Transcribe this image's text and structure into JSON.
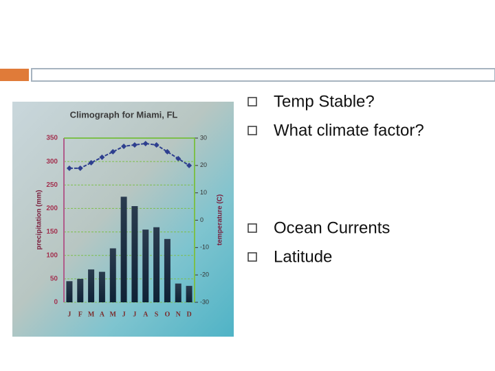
{
  "bullets": [
    "Temp Stable?",
    "What climate factor?",
    "Ocean Currents",
    "Latitude"
  ],
  "chart_data": {
    "type": "bar",
    "title": "Climograph for Miami, FL",
    "y_label": "precipitation (mm)",
    "y2_label": "temperature (C)",
    "categories": [
      "J",
      "F",
      "M",
      "A",
      "M",
      "J",
      "J",
      "A",
      "S",
      "O",
      "N",
      "D"
    ],
    "series": [
      {
        "color": "#1d2f45",
        "values": [
          45,
          50,
          70,
          65,
          115,
          225,
          205,
          155,
          160,
          135,
          40,
          35
        ]
      },
      {
        "type": "line",
        "axis": "y2",
        "color": "#2e3f8f",
        "values": [
          19,
          19,
          21,
          23,
          25,
          27,
          27.5,
          28,
          27.5,
          25,
          22.5,
          20
        ]
      }
    ],
    "ylim": [
      0,
      350
    ],
    "yticks": [
      0,
      50,
      100,
      150,
      200,
      250,
      300,
      350
    ],
    "y2lim": [
      -30,
      30
    ],
    "y2ticks": [
      -30,
      -20,
      -10,
      0,
      10,
      20,
      30
    ],
    "grid": true
  }
}
